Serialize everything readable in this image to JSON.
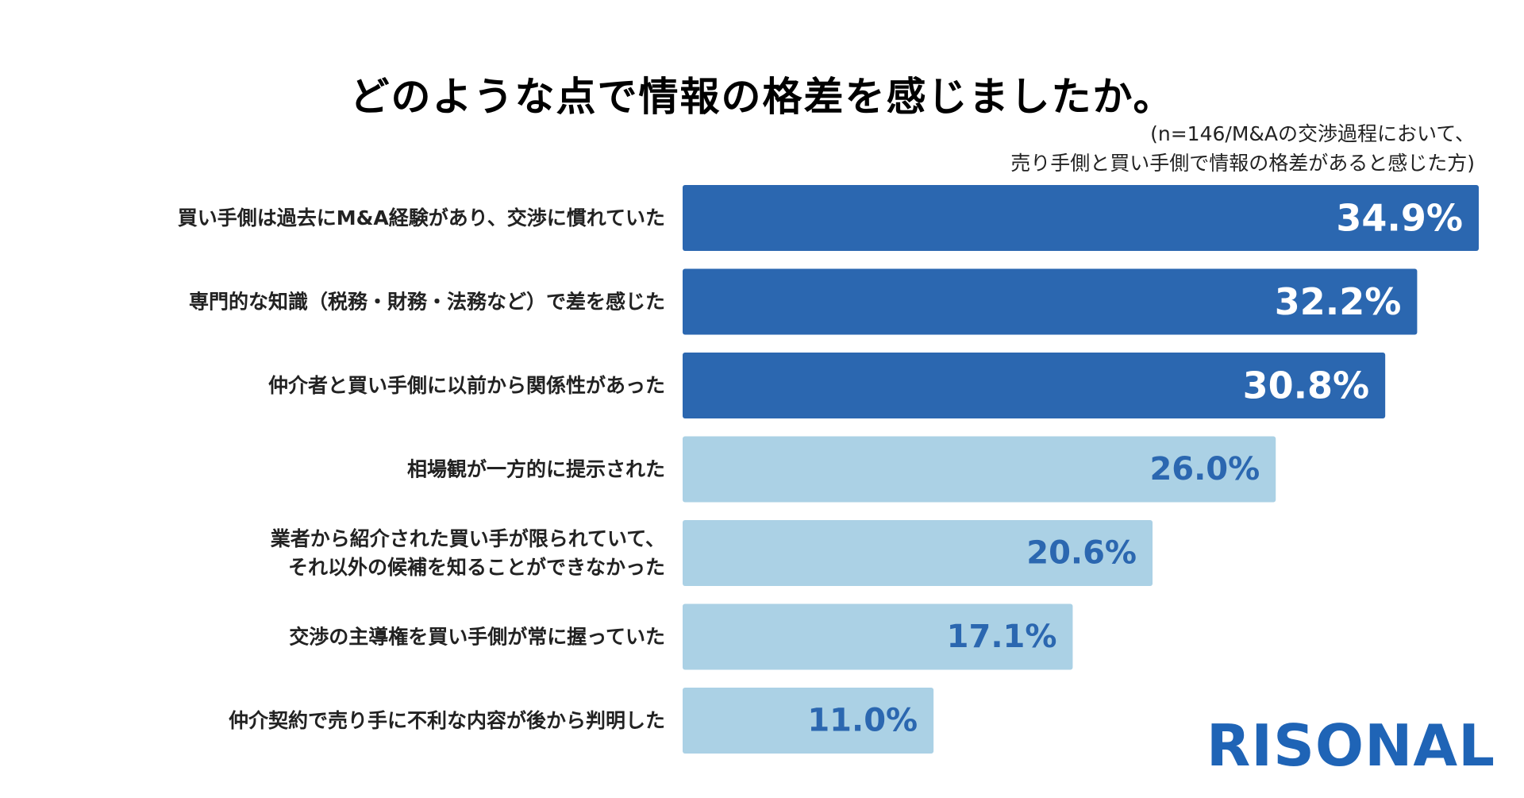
{
  "chart_data": {
    "type": "bar",
    "orientation": "horizontal",
    "title": "どのような点で情報の格差を感じましたか。",
    "subtitle": [
      "(n=146/M&Aの交渉過程において、",
      "売り手側と買い手側で情報の格差があると感じた方)"
    ],
    "categories": [
      [
        "買い手側は過去にM&A経験があり、交渉に慣れていた"
      ],
      [
        "専門的な知識（税務・財務・法務など）で差を感じた"
      ],
      [
        "仲介者と買い手側に以前から関係性があった"
      ],
      [
        "相場観が一方的に提示された"
      ],
      [
        "業者から紹介された買い手が限られていて、",
        "それ以外の候補を知ることができなかった"
      ],
      [
        "交渉の主導権を買い手側が常に握っていた"
      ],
      [
        "仲介契約で売り手に不利な内容が後から判明した"
      ]
    ],
    "values": [
      34.9,
      32.2,
      30.8,
      26.0,
      20.6,
      17.1,
      11.0
    ],
    "value_labels": [
      "34.9%",
      "32.2%",
      "30.8%",
      "26.0%",
      "20.6%",
      "17.1%",
      "11.0%"
    ],
    "highlight_count": 3,
    "xlim": [
      0,
      34.9
    ]
  },
  "colors": {
    "bar_highlight": "#2b67b0",
    "bar_normal": "#abd1e5",
    "label_on_highlight": "#ffffff",
    "label_on_normal": "#2b67b0",
    "logo": "#1f64b6"
  },
  "logo": {
    "text": "RISONAL"
  }
}
